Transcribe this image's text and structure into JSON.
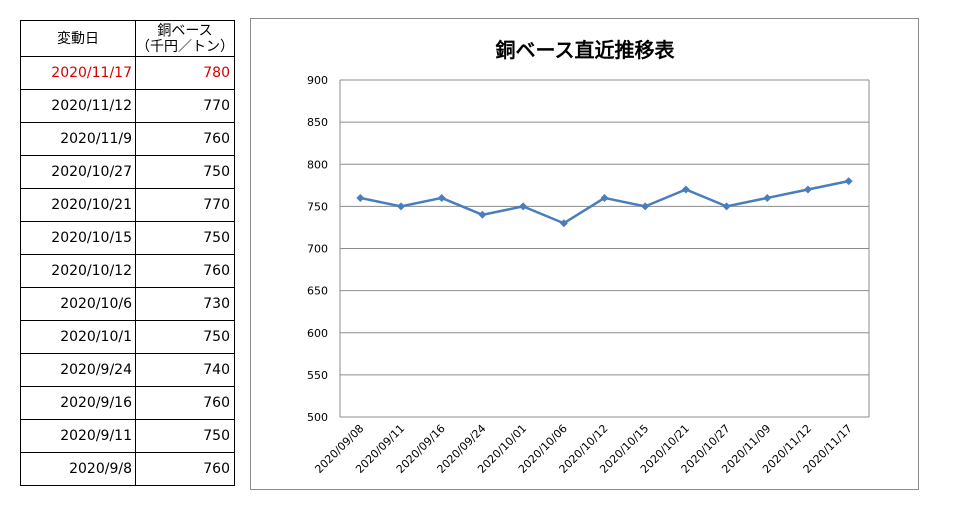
{
  "table": {
    "header": {
      "date_label": "変動日",
      "price_label_line1": "銅ベース",
      "price_label_line2": "（千円／トン）"
    },
    "rows": [
      {
        "date": "2020/11/17",
        "value": "780"
      },
      {
        "date": "2020/11/12",
        "value": "770"
      },
      {
        "date": "2020/11/9",
        "value": "760"
      },
      {
        "date": "2020/10/27",
        "value": "750"
      },
      {
        "date": "2020/10/21",
        "value": "770"
      },
      {
        "date": "2020/10/15",
        "value": "750"
      },
      {
        "date": "2020/10/12",
        "value": "760"
      },
      {
        "date": "2020/10/6",
        "value": "730"
      },
      {
        "date": "2020/10/1",
        "value": "750"
      },
      {
        "date": "2020/9/24",
        "value": "740"
      },
      {
        "date": "2020/9/16",
        "value": "760"
      },
      {
        "date": "2020/9/11",
        "value": "750"
      },
      {
        "date": "2020/9/8",
        "value": "760"
      }
    ],
    "highlight_color": "#d40000"
  },
  "chart_data": {
    "type": "line",
    "title": "銅ベース直近推移表",
    "xlabel": "",
    "ylabel": "",
    "categories": [
      "2020/09/08",
      "2020/09/11",
      "2020/09/16",
      "2020/09/24",
      "2020/10/01",
      "2020/10/06",
      "2020/10/12",
      "2020/10/15",
      "2020/10/21",
      "2020/10/27",
      "2020/11/09",
      "2020/11/12",
      "2020/11/17"
    ],
    "series": [
      {
        "values": [
          760,
          750,
          760,
          740,
          750,
          730,
          760,
          750,
          770,
          750,
          760,
          770,
          780
        ],
        "color": "#4a7ebb",
        "marker": "diamond"
      }
    ],
    "ylim": [
      500,
      900
    ],
    "yticks": [
      "500",
      "550",
      "600",
      "650",
      "700",
      "750",
      "800",
      "850",
      "900"
    ],
    "grid": "horizontal",
    "legend": "none"
  }
}
